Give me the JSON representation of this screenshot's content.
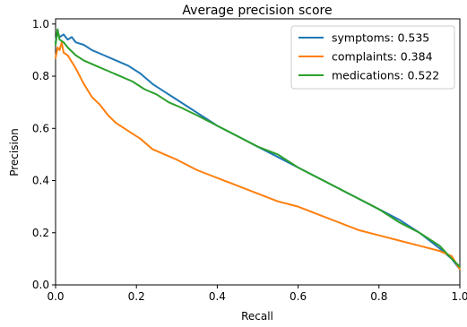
{
  "chart_data": {
    "type": "line",
    "title": "Average precision score",
    "xlabel": "Recall",
    "ylabel": "Precision",
    "xlim": [
      0,
      1
    ],
    "ylim": [
      0,
      1.02
    ],
    "xticks": [
      0.0,
      0.2,
      0.4,
      0.6,
      0.8,
      1.0
    ],
    "yticks": [
      0.0,
      0.2,
      0.4,
      0.6,
      0.8,
      1.0
    ],
    "xtick_labels": [
      "0.0",
      "0.2",
      "0.4",
      "0.6",
      "0.8",
      "1.0"
    ],
    "ytick_labels": [
      "0.0",
      "0.2",
      "0.4",
      "0.6",
      "0.8",
      "1.0"
    ],
    "grid": false,
    "legend_position": "top-right",
    "series": [
      {
        "name": "symptoms: 0.535",
        "color": "#1f77b4",
        "points": [
          [
            0.0,
            0.93
          ],
          [
            0.005,
            0.97
          ],
          [
            0.01,
            0.95
          ],
          [
            0.02,
            0.96
          ],
          [
            0.03,
            0.94
          ],
          [
            0.04,
            0.95
          ],
          [
            0.05,
            0.93
          ],
          [
            0.07,
            0.92
          ],
          [
            0.09,
            0.9
          ],
          [
            0.12,
            0.88
          ],
          [
            0.15,
            0.86
          ],
          [
            0.18,
            0.84
          ],
          [
            0.21,
            0.81
          ],
          [
            0.24,
            0.77
          ],
          [
            0.27,
            0.74
          ],
          [
            0.3,
            0.71
          ],
          [
            0.33,
            0.68
          ],
          [
            0.36,
            0.65
          ],
          [
            0.4,
            0.61
          ],
          [
            0.45,
            0.57
          ],
          [
            0.5,
            0.53
          ],
          [
            0.55,
            0.49
          ],
          [
            0.6,
            0.45
          ],
          [
            0.65,
            0.41
          ],
          [
            0.7,
            0.37
          ],
          [
            0.75,
            0.33
          ],
          [
            0.8,
            0.29
          ],
          [
            0.85,
            0.25
          ],
          [
            0.9,
            0.2
          ],
          [
            0.95,
            0.14
          ],
          [
            0.98,
            0.1
          ],
          [
            1.0,
            0.06
          ]
        ]
      },
      {
        "name": "complaints: 0.384",
        "color": "#ff7f0e",
        "points": [
          [
            0.0,
            0.87
          ],
          [
            0.005,
            0.91
          ],
          [
            0.01,
            0.9
          ],
          [
            0.015,
            0.93
          ],
          [
            0.02,
            0.89
          ],
          [
            0.03,
            0.88
          ],
          [
            0.05,
            0.83
          ],
          [
            0.07,
            0.77
          ],
          [
            0.09,
            0.72
          ],
          [
            0.11,
            0.69
          ],
          [
            0.13,
            0.65
          ],
          [
            0.15,
            0.62
          ],
          [
            0.18,
            0.59
          ],
          [
            0.21,
            0.56
          ],
          [
            0.24,
            0.52
          ],
          [
            0.27,
            0.5
          ],
          [
            0.3,
            0.48
          ],
          [
            0.35,
            0.44
          ],
          [
            0.4,
            0.41
          ],
          [
            0.45,
            0.38
          ],
          [
            0.5,
            0.35
          ],
          [
            0.55,
            0.32
          ],
          [
            0.6,
            0.3
          ],
          [
            0.65,
            0.27
          ],
          [
            0.7,
            0.24
          ],
          [
            0.75,
            0.21
          ],
          [
            0.8,
            0.19
          ],
          [
            0.85,
            0.17
          ],
          [
            0.9,
            0.15
          ],
          [
            0.95,
            0.13
          ],
          [
            0.98,
            0.11
          ],
          [
            1.0,
            0.06
          ]
        ]
      },
      {
        "name": "medications: 0.522",
        "color": "#2ca02c",
        "points": [
          [
            0.0,
            0.92
          ],
          [
            0.005,
            0.98
          ],
          [
            0.01,
            0.94
          ],
          [
            0.02,
            0.93
          ],
          [
            0.03,
            0.91
          ],
          [
            0.05,
            0.88
          ],
          [
            0.07,
            0.86
          ],
          [
            0.1,
            0.84
          ],
          [
            0.13,
            0.82
          ],
          [
            0.16,
            0.8
          ],
          [
            0.19,
            0.78
          ],
          [
            0.22,
            0.75
          ],
          [
            0.25,
            0.73
          ],
          [
            0.28,
            0.7
          ],
          [
            0.31,
            0.68
          ],
          [
            0.35,
            0.65
          ],
          [
            0.4,
            0.61
          ],
          [
            0.45,
            0.57
          ],
          [
            0.5,
            0.53
          ],
          [
            0.55,
            0.5
          ],
          [
            0.6,
            0.45
          ],
          [
            0.65,
            0.41
          ],
          [
            0.7,
            0.37
          ],
          [
            0.75,
            0.33
          ],
          [
            0.8,
            0.29
          ],
          [
            0.85,
            0.24
          ],
          [
            0.9,
            0.2
          ],
          [
            0.95,
            0.15
          ],
          [
            0.98,
            0.1
          ],
          [
            1.0,
            0.07
          ]
        ]
      }
    ]
  }
}
